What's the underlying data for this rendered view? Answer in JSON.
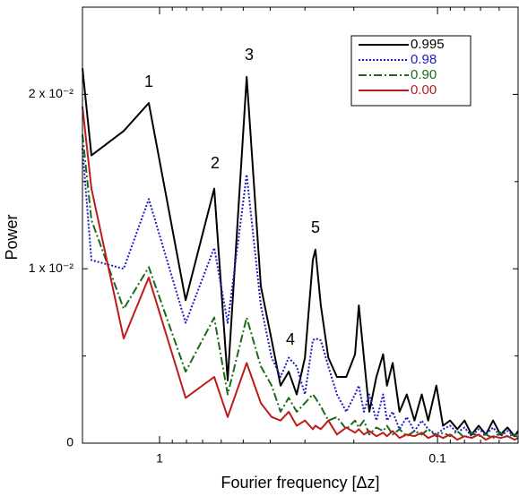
{
  "chart_data": {
    "type": "line",
    "xlabel": "Fourier frequency [Δz]",
    "ylabel": "Power",
    "xscale": "log",
    "xlim": [
      1.894,
      0.0513
    ],
    "xticks": [
      1,
      0.1
    ],
    "xminor_ticks": [
      0.9,
      0.8,
      0.7,
      0.6,
      0.5,
      0.4,
      0.3,
      0.2,
      0.09,
      0.08,
      0.07,
      0.06
    ],
    "ylim": [
      0,
      0.025
    ],
    "yticks": [
      {
        "value": 0,
        "label": "0"
      },
      {
        "value": 0.01,
        "label": "1 x 10⁻²"
      },
      {
        "value": 0.02,
        "label": "2 x 10⁻²"
      }
    ],
    "yminor_ticks": [
      0.005,
      0.015
    ],
    "legend": "upper right",
    "annotations": [
      "1",
      "2",
      "3",
      "4",
      "5"
    ],
    "x": [
      1.894,
      1.759,
      1.346,
      1.093,
      0.806,
      0.636,
      0.569,
      0.486,
      0.432,
      0.395,
      0.367,
      0.343,
      0.321,
      0.3,
      0.281,
      0.275,
      0.263,
      0.247,
      0.23,
      0.213,
      0.198,
      0.192,
      0.184,
      0.176,
      0.166,
      0.157,
      0.152,
      0.145,
      0.137,
      0.129,
      0.121,
      0.114,
      0.108,
      0.101,
      0.0956,
      0.0901,
      0.0849,
      0.08,
      0.0754,
      0.0711,
      0.067,
      0.0631,
      0.0594,
      0.056,
      0.0528,
      0.0513
    ],
    "series": [
      {
        "name": "0.995",
        "color": "#000000",
        "dash": "none",
        "values": [
          0.0215,
          0.0165,
          0.0179,
          0.0195,
          0.0082,
          0.0146,
          0.0036,
          0.021,
          0.009,
          0.0059,
          0.0033,
          0.0041,
          0.0028,
          0.0049,
          0.0105,
          0.0111,
          0.0079,
          0.0049,
          0.0038,
          0.0038,
          0.0051,
          0.0079,
          0.0049,
          0.0018,
          0.0038,
          0.0051,
          0.0033,
          0.0046,
          0.0018,
          0.0028,
          0.0013,
          0.0028,
          0.0013,
          0.0033,
          0.001,
          0.0013,
          0.0008,
          0.0013,
          0.0005,
          0.001,
          0.0005,
          0.0013,
          0.0005,
          0.0009,
          0.0004,
          0.0007
        ]
      },
      {
        "name": "0.98",
        "color": "#1c1cc8",
        "dash": "2,2",
        "values": [
          0.0169,
          0.0105,
          0.01,
          0.014,
          0.0069,
          0.0112,
          0.0069,
          0.0154,
          0.0079,
          0.0049,
          0.0038,
          0.0049,
          0.0044,
          0.0028,
          0.0059,
          0.006,
          0.0059,
          0.0044,
          0.0028,
          0.0018,
          0.0028,
          0.0033,
          0.0018,
          0.0028,
          0.0013,
          0.0028,
          0.0013,
          0.0018,
          0.0008,
          0.0015,
          0.0007,
          0.0013,
          0.0008,
          0.0005,
          0.0008,
          0.001,
          0.0006,
          0.0009,
          0.0004,
          0.0008,
          0.0005,
          0.0009,
          0.0004,
          0.0007,
          0.0004,
          0.0006
        ]
      },
      {
        "name": "0.90",
        "color": "#1a6a1a",
        "dash": "9,3,2,3",
        "values": [
          0.0177,
          0.0128,
          0.0077,
          0.0101,
          0.0041,
          0.0072,
          0.0028,
          0.0072,
          0.0044,
          0.0033,
          0.0018,
          0.0026,
          0.0018,
          0.0023,
          0.0028,
          0.0026,
          0.0021,
          0.0013,
          0.0015,
          0.0008,
          0.0013,
          0.0009,
          0.0013,
          0.0005,
          0.0009,
          0.0007,
          0.001,
          0.0005,
          0.0008,
          0.0004,
          0.0007,
          0.0005,
          0.0008,
          0.0004,
          0.0006,
          0.0004,
          0.0007,
          0.0003,
          0.0006,
          0.0004,
          0.0005,
          0.0003,
          0.0006,
          0.0004,
          0.0005,
          0.0003
        ]
      },
      {
        "name": "0.00",
        "color": "#c01a1a",
        "dash": "none",
        "values": [
          0.0193,
          0.0146,
          0.006,
          0.0095,
          0.0026,
          0.0038,
          0.0015,
          0.0046,
          0.0023,
          0.0015,
          0.0013,
          0.0018,
          0.001,
          0.0013,
          0.0008,
          0.001,
          0.0008,
          0.0013,
          0.0005,
          0.0009,
          0.0006,
          0.0008,
          0.0005,
          0.0007,
          0.0004,
          0.0006,
          0.0004,
          0.0007,
          0.0003,
          0.0005,
          0.0004,
          0.0006,
          0.0003,
          0.0005,
          0.0003,
          0.0005,
          0.0002,
          0.0004,
          0.0003,
          0.0005,
          0.0002,
          0.0004,
          0.0003,
          0.0004,
          0.0002,
          0.0003
        ]
      }
    ]
  }
}
